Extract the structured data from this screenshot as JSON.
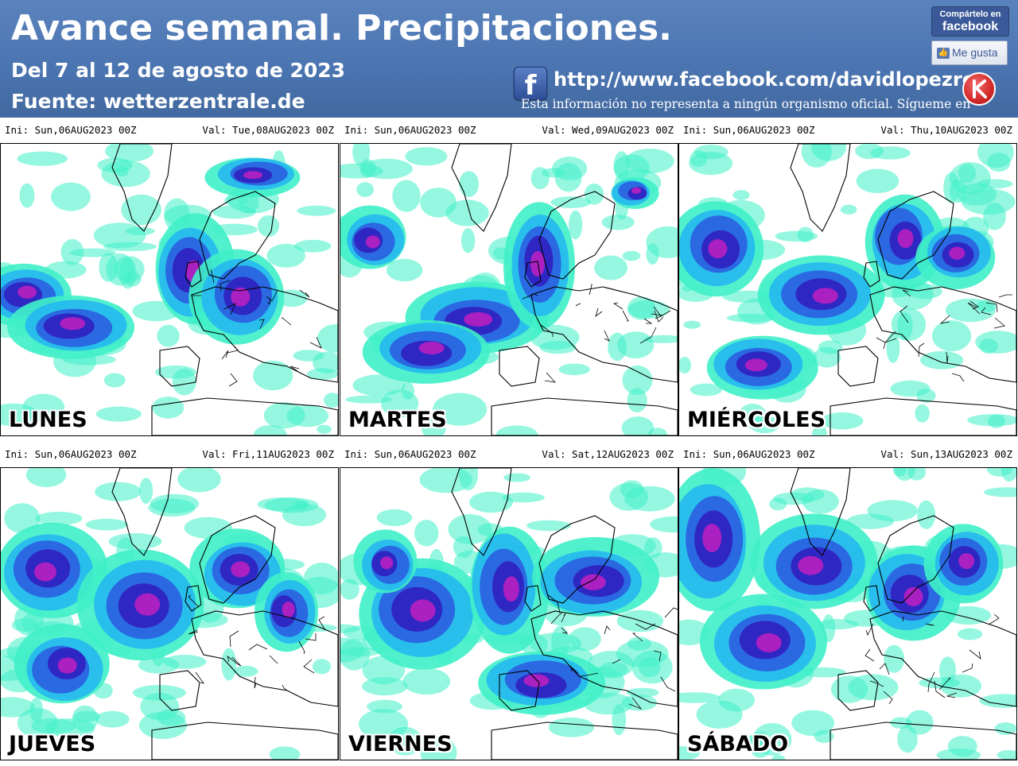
{
  "header": {
    "title": "Avance semanal. Precipitaciones.",
    "subtitle": "Del 7 al 12 de agosto de 2023",
    "source": "Fuente: wetterzentrale.de",
    "url": "http://www.facebook.com/davidlopezrey",
    "disclaimer": "Esta información no representa a ningún organismo oficial. Sígueme en",
    "share_line1": "Compártelo en",
    "share_line2": "facebook",
    "like_label": "Me gusta",
    "facebook_icon": "f"
  },
  "colors": {
    "header_bg": "#4a74b0",
    "precip_light": "#3ff0c8",
    "precip_cyan": "#25b8f0",
    "precip_blue": "#2a5fe0",
    "precip_deep": "#3020c0",
    "precip_heavy": "#c020c0"
  },
  "panels": [
    {
      "ini": "Ini: Sun,06AUG2023 00Z",
      "val": "Val: Tue,08AUG2023 00Z",
      "day": "LUNES"
    },
    {
      "ini": "Ini: Sun,06AUG2023 00Z",
      "val": "Val: Wed,09AUG2023 00Z",
      "day": "MARTES"
    },
    {
      "ini": "Ini: Sun,06AUG2023 00Z",
      "val": "Val: Thu,10AUG2023 00Z",
      "day": "MIÉRCOLES"
    },
    {
      "ini": "Ini: Sun,06AUG2023 00Z",
      "val": "Val: Fri,11AUG2023 00Z",
      "day": "JUEVES"
    },
    {
      "ini": "Ini: Sun,06AUG2023 00Z",
      "val": "Val: Sat,12AUG2023 00Z",
      "day": "VIERNES"
    },
    {
      "ini": "Ini: Sun,06AUG2023 00Z",
      "val": "Val: Sun,13AUG2023 00Z",
      "day": "SÁBADO"
    }
  ]
}
